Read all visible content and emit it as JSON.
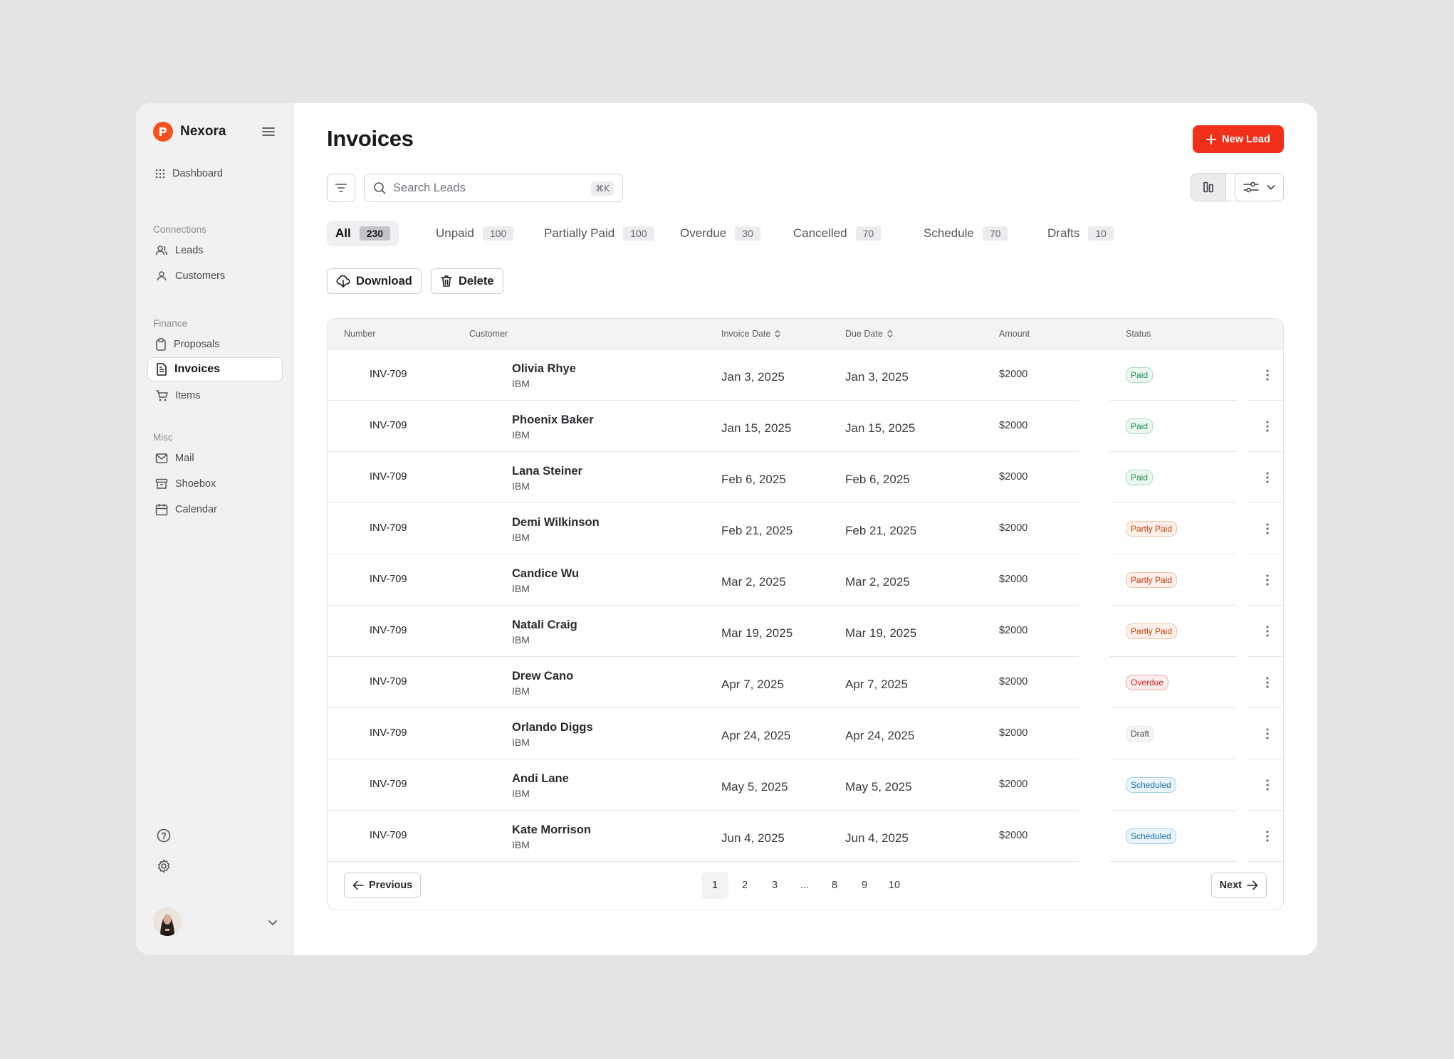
{
  "brand": {
    "name": "Nexora",
    "accent": "#f4511e"
  },
  "sidebar": {
    "dashboard": "Dashboard",
    "sections": {
      "connections": "Connections",
      "finance": "Finance",
      "misc": "Misc"
    },
    "items": {
      "leads": "Leads",
      "customers": "Customers",
      "proposals": "Proposals",
      "invoices": "Invoices",
      "items": "Items",
      "mail": "Mail",
      "shoebox": "Shoebox",
      "calendar": "Calendar"
    },
    "active": "Invoices"
  },
  "header": {
    "title": "Invoices",
    "new_lead": "New Lead"
  },
  "search": {
    "placeholder": "Search Leads",
    "shortcut": "⌘K"
  },
  "tabs": [
    {
      "label": "All",
      "count": "230"
    },
    {
      "label": "Unpaid",
      "count": "100"
    },
    {
      "label": "Partially Paid",
      "count": "100"
    },
    {
      "label": "Overdue",
      "count": "30"
    },
    {
      "label": "Cancelled",
      "count": "70"
    },
    {
      "label": "Schedule",
      "count": "70"
    },
    {
      "label": "Drafts",
      "count": "10"
    }
  ],
  "actions": {
    "download": "Download",
    "delete": "Delete"
  },
  "table": {
    "columns": {
      "number": "Number",
      "customer": "Customer",
      "invoice_date": "Invoice Date",
      "due_date": "Due Date",
      "amount": "Amount",
      "status": "Status"
    },
    "rows": [
      {
        "number": "INV-709",
        "name": "Olivia Rhye",
        "company": "IBM",
        "invoice_date": "Jan 3, 2025",
        "due_date": "Jan 3, 2025",
        "amount": "$2000",
        "status": "Paid",
        "status_kind": "paid"
      },
      {
        "number": "INV-709",
        "name": "Phoenix Baker",
        "company": "IBM",
        "invoice_date": "Jan 15, 2025",
        "due_date": "Jan 15, 2025",
        "amount": "$2000",
        "status": "Paid",
        "status_kind": "paid"
      },
      {
        "number": "INV-709",
        "name": "Lana Steiner",
        "company": "IBM",
        "invoice_date": "Feb 6, 2025",
        "due_date": "Feb 6, 2025",
        "amount": "$2000",
        "status": "Paid",
        "status_kind": "paid"
      },
      {
        "number": "INV-709",
        "name": "Demi Wilkinson",
        "company": "IBM",
        "invoice_date": "Feb 21, 2025",
        "due_date": "Feb 21, 2025",
        "amount": "$2000",
        "status": "Partly Paid",
        "status_kind": "partly"
      },
      {
        "number": "INV-709",
        "name": "Candice Wu",
        "company": "IBM",
        "invoice_date": "Mar 2, 2025",
        "due_date": "Mar 2, 2025",
        "amount": "$2000",
        "status": "Partly Paid",
        "status_kind": "partly"
      },
      {
        "number": "INV-709",
        "name": "Natali Craig",
        "company": "IBM",
        "invoice_date": "Mar 19, 2025",
        "due_date": "Mar 19, 2025",
        "amount": "$2000",
        "status": "Partly Paid",
        "status_kind": "partly"
      },
      {
        "number": "INV-709",
        "name": "Drew Cano",
        "company": "IBM",
        "invoice_date": "Apr 7, 2025",
        "due_date": "Apr 7, 2025",
        "amount": "$2000",
        "status": "Overdue",
        "status_kind": "overdue"
      },
      {
        "number": "INV-709",
        "name": "Orlando Diggs",
        "company": "IBM",
        "invoice_date": "Apr 24, 2025",
        "due_date": "Apr 24, 2025",
        "amount": "$2000",
        "status": "Draft",
        "status_kind": "draft"
      },
      {
        "number": "INV-709",
        "name": "Andi Lane",
        "company": "IBM",
        "invoice_date": "May 5, 2025",
        "due_date": "May 5, 2025",
        "amount": "$2000",
        "status": "Scheduled",
        "status_kind": "scheduled"
      },
      {
        "number": "INV-709",
        "name": "Kate Morrison",
        "company": "IBM",
        "invoice_date": "Jun 4, 2025",
        "due_date": "Jun 4, 2025",
        "amount": "$2000",
        "status": "Scheduled",
        "status_kind": "scheduled"
      }
    ]
  },
  "pagination": {
    "previous": "Previous",
    "next": "Next",
    "pages": [
      "1",
      "2",
      "3",
      "...",
      "8",
      "9",
      "10"
    ],
    "current": "1"
  }
}
